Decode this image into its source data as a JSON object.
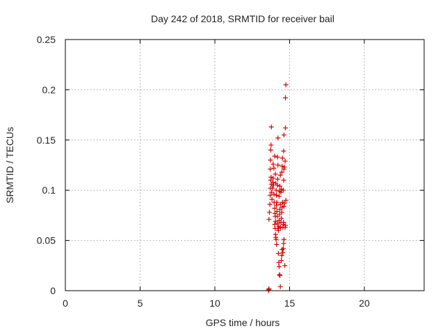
{
  "chart_data": {
    "type": "scatter",
    "title": "Day 242 of 2018, SRMTID for receiver bail",
    "xlabel": "GPS time / hours",
    "ylabel": "SRMTID / TECUs",
    "xlim": [
      0,
      24
    ],
    "ylim": [
      0,
      0.25
    ],
    "xticks": [
      0,
      5,
      10,
      15,
      20
    ],
    "xtick_labels": [
      "0",
      "5",
      "10",
      "15",
      "20"
    ],
    "yticks": [
      0,
      0.05,
      0.1,
      0.15,
      0.2,
      0.25
    ],
    "ytick_labels": [
      "0",
      "0.05",
      "0.1",
      "0.15",
      "0.2",
      "0.25"
    ],
    "grid": true,
    "marker": "+",
    "color": "#d40000",
    "series": [
      {
        "points": [
          [
            13.6,
            0.001
          ],
          [
            13.62,
            0.002
          ],
          [
            13.6,
            0.0
          ],
          [
            13.62,
            0.071
          ],
          [
            13.65,
            0.078
          ],
          [
            13.68,
            0.086
          ],
          [
            13.7,
            0.095
          ],
          [
            13.72,
            0.102
          ],
          [
            13.74,
            0.11
          ],
          [
            13.76,
            0.113
          ],
          [
            13.78,
            0.106
          ],
          [
            13.8,
            0.098
          ],
          [
            13.82,
            0.091
          ],
          [
            13.7,
            0.121
          ],
          [
            13.72,
            0.13
          ],
          [
            13.74,
            0.14
          ],
          [
            13.76,
            0.145
          ],
          [
            13.78,
            0.163
          ],
          [
            13.85,
            0.102
          ],
          [
            13.88,
            0.108
          ],
          [
            13.9,
            0.112
          ],
          [
            13.92,
            0.105
          ],
          [
            13.95,
            0.096
          ],
          [
            13.97,
            0.088
          ],
          [
            13.9,
            0.126
          ],
          [
            13.95,
            0.122
          ],
          [
            14.0,
            0.082
          ],
          [
            14.02,
            0.077
          ],
          [
            14.04,
            0.074
          ],
          [
            14.06,
            0.069
          ],
          [
            14.0,
            0.134
          ],
          [
            14.05,
            0.116
          ],
          [
            14.08,
            0.107
          ],
          [
            14.1,
            0.1
          ],
          [
            14.12,
            0.095
          ],
          [
            14.0,
            0.066
          ],
          [
            14.03,
            0.062
          ],
          [
            14.06,
            0.056
          ],
          [
            14.08,
            0.053
          ],
          [
            14.1,
            0.051
          ],
          [
            14.13,
            0.046
          ],
          [
            14.15,
            0.079
          ],
          [
            14.18,
            0.074
          ],
          [
            14.2,
            0.067
          ],
          [
            14.22,
            0.062
          ],
          [
            14.12,
            0.085
          ],
          [
            14.15,
            0.088
          ],
          [
            14.18,
            0.105
          ],
          [
            14.2,
            0.111
          ],
          [
            14.22,
            0.125
          ],
          [
            14.2,
            0.133
          ],
          [
            14.22,
            0.152
          ],
          [
            14.25,
            0.037
          ],
          [
            14.28,
            0.028
          ],
          [
            14.3,
            0.024
          ],
          [
            14.32,
            0.016
          ],
          [
            14.35,
            0.015
          ],
          [
            14.38,
            0.004
          ],
          [
            14.25,
            0.06
          ],
          [
            14.28,
            0.064
          ],
          [
            14.3,
            0.07
          ],
          [
            14.33,
            0.076
          ],
          [
            14.35,
            0.081
          ],
          [
            14.38,
            0.086
          ],
          [
            14.3,
            0.094
          ],
          [
            14.33,
            0.099
          ],
          [
            14.35,
            0.104
          ],
          [
            14.38,
            0.115
          ],
          [
            14.4,
            0.063
          ],
          [
            14.42,
            0.068
          ],
          [
            14.45,
            0.072
          ],
          [
            14.48,
            0.078
          ],
          [
            14.5,
            0.083
          ],
          [
            14.52,
            0.088
          ],
          [
            14.42,
            0.098
          ],
          [
            14.45,
            0.101
          ],
          [
            14.48,
            0.118
          ],
          [
            14.5,
            0.124
          ],
          [
            14.52,
            0.132
          ],
          [
            14.45,
            0.03
          ],
          [
            14.48,
            0.035
          ],
          [
            14.5,
            0.041
          ],
          [
            14.55,
            0.038
          ],
          [
            14.58,
            0.042
          ],
          [
            14.6,
            0.047
          ],
          [
            14.62,
            0.051
          ],
          [
            14.55,
            0.063
          ],
          [
            14.58,
            0.066
          ],
          [
            14.6,
            0.068
          ],
          [
            14.62,
            0.084
          ],
          [
            14.65,
            0.087
          ],
          [
            14.58,
            0.1
          ],
          [
            14.6,
            0.11
          ],
          [
            14.62,
            0.121
          ],
          [
            14.65,
            0.123
          ],
          [
            14.6,
            0.139
          ],
          [
            14.62,
            0.155
          ],
          [
            14.68,
            0.025
          ],
          [
            14.7,
            0.063
          ],
          [
            14.72,
            0.065
          ],
          [
            14.75,
            0.09
          ],
          [
            14.7,
            0.129
          ],
          [
            14.72,
            0.162
          ],
          [
            14.72,
            0.192
          ],
          [
            14.75,
            0.205
          ]
        ]
      }
    ]
  }
}
